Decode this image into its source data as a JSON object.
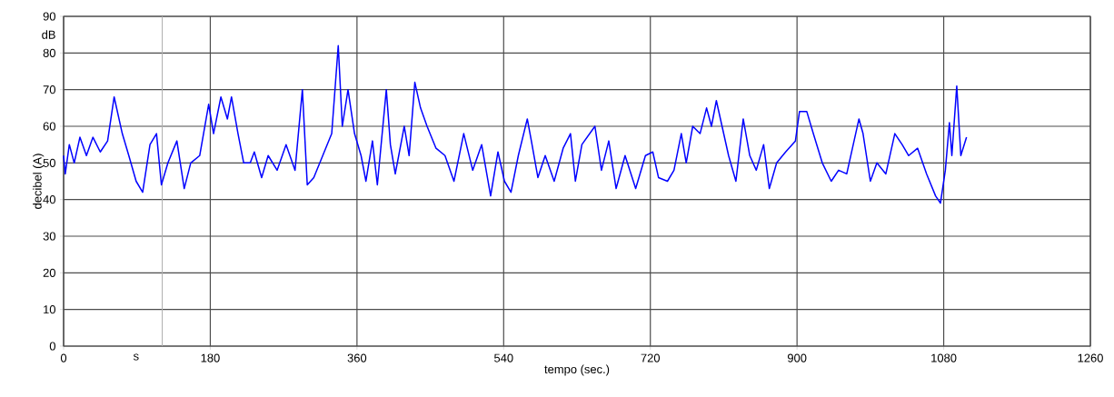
{
  "chart_data": {
    "type": "line",
    "xlabel": "tempo (sec.)",
    "ylabel": "decibel (A)",
    "xlim": [
      0,
      1260
    ],
    "ylim": [
      0,
      90
    ],
    "xticks": [
      0,
      180,
      360,
      540,
      720,
      900,
      1080,
      1260
    ],
    "yticks": [
      0,
      10,
      20,
      30,
      40,
      50,
      60,
      70,
      80,
      90
    ],
    "grid": true,
    "legend": false,
    "marker": "none",
    "line_style": "solid",
    "annotations": [
      "dB",
      "s"
    ],
    "ref_lines": [
      {
        "axis": "x",
        "value": 121,
        "color": "#b0b0b0"
      }
    ],
    "series": [
      {
        "color": "#0000ff",
        "x": [
          0,
          2,
          7,
          13,
          20,
          28,
          36,
          45,
          54,
          62,
          72,
          80,
          89,
          97,
          106,
          114,
          120,
          128,
          139,
          148,
          156,
          167,
          178,
          184,
          193,
          201,
          206,
          214,
          221,
          229,
          234,
          243,
          251,
          262,
          273,
          284,
          293,
          299,
          307,
          318,
          329,
          337,
          342,
          349,
          357,
          365,
          371,
          379,
          385,
          396,
          401,
          407,
          418,
          424,
          431,
          438,
          446,
          457,
          468,
          479,
          491,
          502,
          513,
          524,
          533,
          541,
          549,
          558,
          569,
          574,
          582,
          591,
          602,
          613,
          622,
          628,
          636,
          652,
          660,
          669,
          678,
          689,
          702,
          714,
          723,
          730,
          741,
          749,
          758,
          764,
          772,
          781,
          789,
          795,
          801,
          808,
          816,
          825,
          834,
          842,
          850,
          859,
          866,
          875,
          886,
          898,
          903,
          912,
          920,
          931,
          942,
          951,
          961,
          976,
          981,
          990,
          998,
          1009,
          1020,
          1029,
          1037,
          1048,
          1059,
          1070,
          1076,
          1082,
          1087,
          1090,
          1096,
          1101,
          1108
        ],
        "values": [
          52,
          47,
          55,
          50,
          57,
          52,
          57,
          53,
          56,
          68,
          58,
          52,
          45,
          42,
          55,
          58,
          44,
          50,
          56,
          43,
          50,
          52,
          66,
          58,
          68,
          62,
          68,
          58,
          50,
          50,
          53,
          46,
          52,
          48,
          55,
          48,
          70,
          44,
          46,
          52,
          58,
          82,
          60,
          70,
          58,
          52,
          45,
          56,
          44,
          70,
          55,
          47,
          60,
          52,
          72,
          65,
          60,
          54,
          52,
          45,
          58,
          48,
          55,
          41,
          53,
          45,
          42,
          52,
          62,
          56,
          46,
          52,
          45,
          54,
          58,
          45,
          55,
          60,
          48,
          56,
          43,
          52,
          43,
          52,
          53,
          46,
          45,
          48,
          58,
          50,
          60,
          58,
          65,
          60,
          67,
          60,
          52,
          45,
          62,
          52,
          48,
          55,
          43,
          50,
          53,
          56,
          64,
          64,
          58,
          50,
          45,
          48,
          47,
          62,
          58,
          45,
          50,
          47,
          58,
          55,
          52,
          54,
          47,
          41,
          39,
          48,
          61,
          52,
          71,
          52,
          57
        ]
      }
    ]
  }
}
